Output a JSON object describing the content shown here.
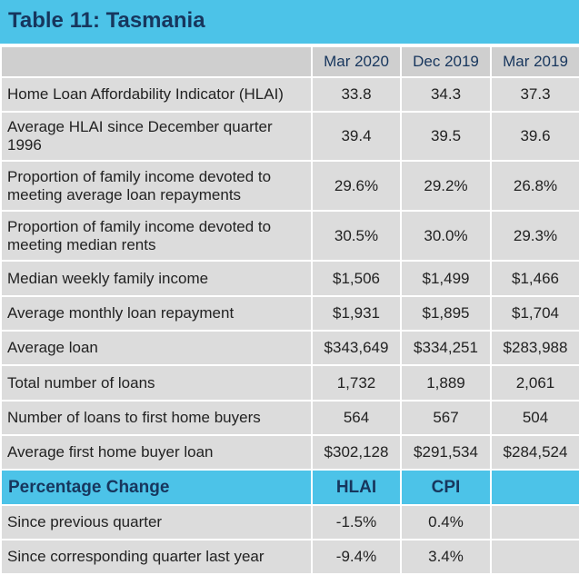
{
  "title": "Table 11: Tasmania",
  "columns": [
    "Mar 2020",
    "Dec 2019",
    "Mar 2019"
  ],
  "rows": [
    {
      "label": "Home Loan Affordability Indicator (HLAI)",
      "values": [
        "33.8",
        "34.3",
        "37.3"
      ]
    },
    {
      "label": "Average HLAI since December quarter 1996",
      "values": [
        "39.4",
        "39.5",
        "39.6"
      ]
    },
    {
      "label": "Proportion of family income devoted to meeting average loan repayments",
      "values": [
        "29.6%",
        "29.2%",
        "26.8%"
      ]
    },
    {
      "label": "Proportion of family income devoted to meeting median rents",
      "values": [
        "30.5%",
        "30.0%",
        "29.3%"
      ]
    },
    {
      "label": "Median weekly family income",
      "values": [
        "$1,506",
        "$1,499",
        "$1,466"
      ]
    },
    {
      "label": "Average monthly loan repayment",
      "values": [
        "$1,931",
        "$1,895",
        "$1,704"
      ]
    },
    {
      "label": "Average loan",
      "values": [
        "$343,649",
        "$334,251",
        "$283,988"
      ]
    },
    {
      "label": "Total number of loans",
      "values": [
        "1,732",
        "1,889",
        "2,061"
      ]
    },
    {
      "label": "Number of loans to first home buyers",
      "values": [
        "564",
        "567",
        "504"
      ]
    },
    {
      "label": "Average first home buyer loan",
      "values": [
        "$302,128",
        "$291,534",
        "$284,524"
      ]
    }
  ],
  "change_section": {
    "label": "Percentage Change",
    "columns": [
      "HLAI",
      "CPI"
    ],
    "rows": [
      {
        "label": "Since previous quarter",
        "values": [
          "-1.5%",
          "0.4%"
        ]
      },
      {
        "label": "Since corresponding quarter last year",
        "values": [
          "-9.4%",
          "3.4%"
        ]
      }
    ]
  },
  "colors": {
    "accent": "#4cc3e8",
    "title_text": "#17365d",
    "cell_bg": "#dcdcdc"
  }
}
